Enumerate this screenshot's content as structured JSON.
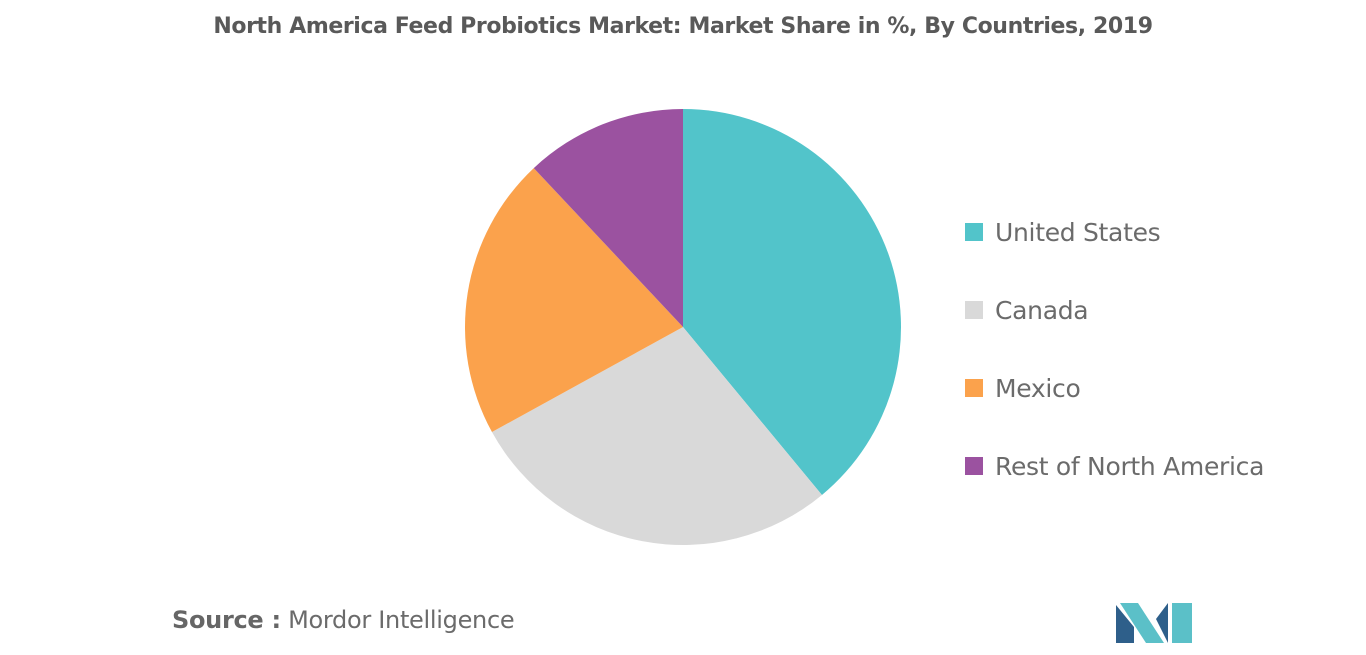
{
  "chart_data": {
    "type": "pie",
    "title": "North America Feed Probiotics Market: Market Share in %, By Countries, 2019",
    "categories": [
      "United States",
      "Canada",
      "Mexico",
      "Rest of North America"
    ],
    "values": [
      39,
      28,
      21,
      12
    ],
    "colors": [
      "#52c4ca",
      "#d9d9d9",
      "#fba24c",
      "#9b52a0"
    ],
    "start_angle_deg": 0,
    "direction": "clockwise",
    "legend_position": "right"
  },
  "source": {
    "label": "Source :",
    "text": "Mordor Intelligence"
  },
  "logo": {
    "icon": "mordor-intelligence-logo-icon",
    "colors": [
      "#2e5f8a",
      "#5bc0c8"
    ]
  }
}
